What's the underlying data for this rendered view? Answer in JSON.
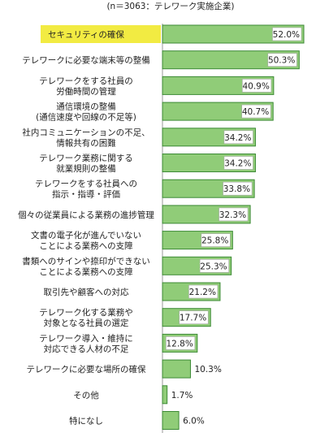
{
  "chart_data": {
    "type": "bar",
    "orientation": "horizontal",
    "subtitle": "(n＝3063：テレワーク実施企業)",
    "value_suffix": "%",
    "categories": [
      [
        "セキュリティの確保"
      ],
      [
        "テレワークに必要な端末等の整備"
      ],
      [
        "テレワークをする社員の",
        "労働時間の管理"
      ],
      [
        "通信環境の整備",
        "(通信速度や回線の不足等)"
      ],
      [
        "社内コミュニケーションの不足、",
        "情報共有の困難"
      ],
      [
        "テレワーク業務に関する",
        "就業規則の整備"
      ],
      [
        "テレワークをする社員への",
        "指示・指導・評価"
      ],
      [
        "個々の従業員による業務の進捗管理"
      ],
      [
        "文書の電子化が進んでいない",
        "ことによる業務への支障"
      ],
      [
        "書類へのサインや捺印ができない",
        "ことによる業務への支障"
      ],
      [
        "取引先や顧客への対応"
      ],
      [
        "テレワーク化する業務や",
        "対象となる社員の選定"
      ],
      [
        "テレワーク導入・維持に",
        "対応できる人材の不足"
      ],
      [
        "テレワークに必要な場所の確保"
      ],
      [
        "その他"
      ],
      [
        "特になし"
      ]
    ],
    "values": [
      52.0,
      50.3,
      40.9,
      40.7,
      34.2,
      34.2,
      33.8,
      32.3,
      25.8,
      25.3,
      21.2,
      17.7,
      12.8,
      10.3,
      1.7,
      6.0
    ],
    "highlight_index": 0,
    "xlim": [
      0,
      60
    ],
    "colors": {
      "bar_fill": "#90cc78",
      "bar_stroke": "#3c8a35",
      "highlight_label_bg": "#f2eb42",
      "axis": "#999999",
      "label_box_fill": "#ffffff",
      "label_box_stroke": "#a8a8a8"
    }
  }
}
